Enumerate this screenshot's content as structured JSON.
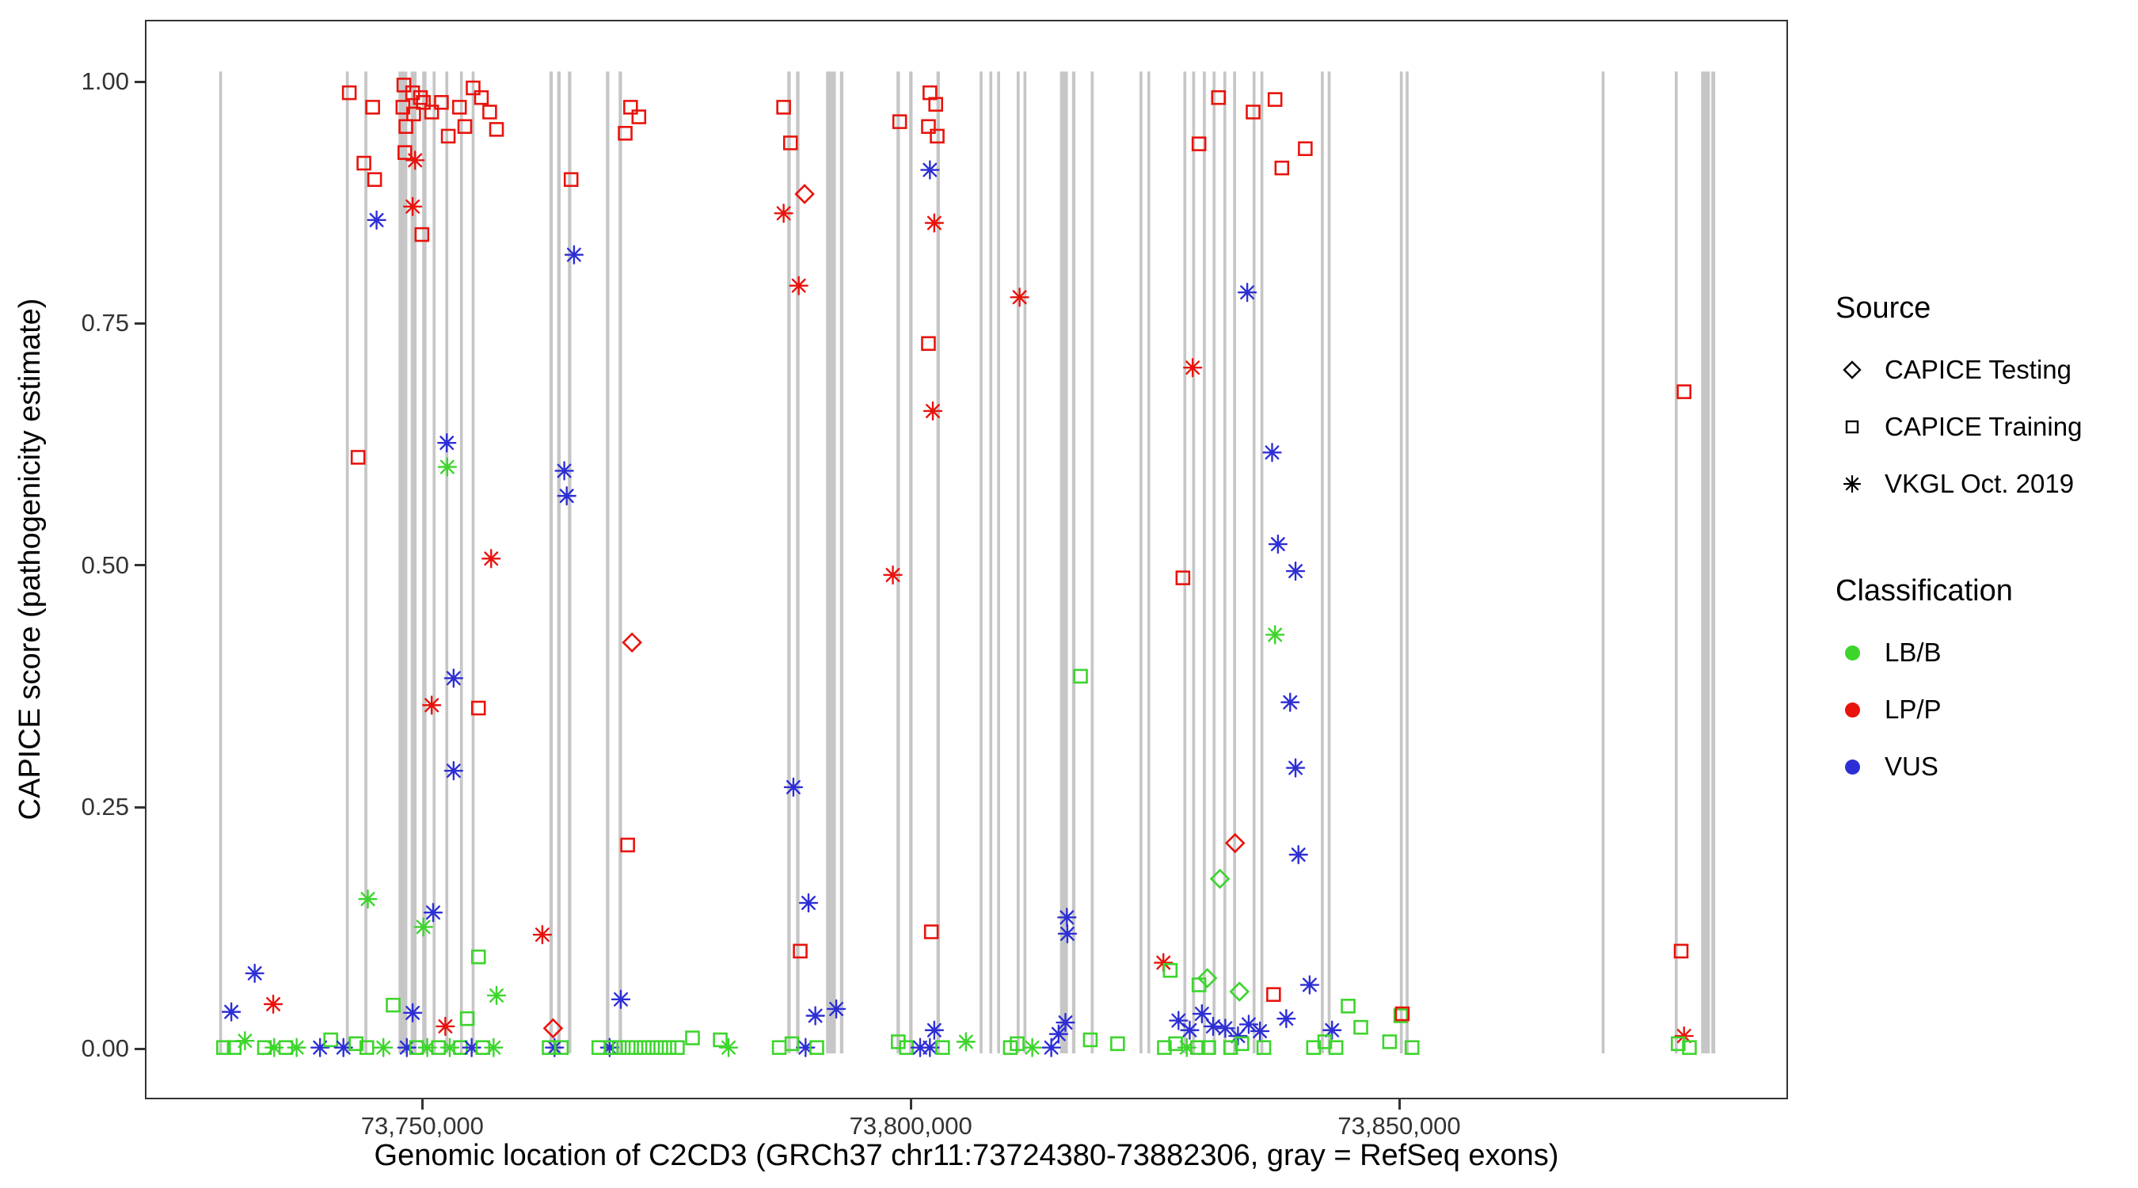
{
  "figure": {
    "xlabel": "Genomic location of C2CD3 (GRCh37 chr11:73724380-73882306, gray = RefSeq exons)",
    "ylabel": "CAPICE score (pathogenicity estimate)",
    "gene": "C2CD3",
    "assembly": "GRCh37",
    "region": "chr11:73724380-73882306"
  },
  "legend": {
    "source": {
      "title": "Source",
      "items": [
        {
          "label": "CAPICE Testing",
          "marker": "diamond"
        },
        {
          "label": "CAPICE Training",
          "marker": "square"
        },
        {
          "label": "VKGL Oct. 2019",
          "marker": "asterisk"
        }
      ]
    },
    "classification": {
      "title": "Classification",
      "items": [
        {
          "label": "LB/B",
          "color": "#3cd52c"
        },
        {
          "label": "LP/P",
          "color": "#e8130c"
        },
        {
          "label": "VUS",
          "color": "#2d2fd5"
        }
      ]
    }
  },
  "chart_data": {
    "type": "scatter",
    "title": "",
    "xlabel": "Genomic location of C2CD3 (GRCh37 chr11:73724380-73882306, gray = RefSeq exons)",
    "ylabel": "CAPICE score (pathogenicity estimate)",
    "legend_position": "right",
    "grid": false,
    "xlim": [
      73721600,
      73889800
    ],
    "ylim": [
      -0.052,
      1.064
    ],
    "x_ticks": [
      {
        "value": 73750000,
        "label": "73,750,000"
      },
      {
        "value": 73800000,
        "label": "73,800,000"
      },
      {
        "value": 73850000,
        "label": "73,850,000"
      }
    ],
    "y_ticks": [
      {
        "value": 0.0,
        "label": "0.00"
      },
      {
        "value": 0.25,
        "label": "0.25"
      },
      {
        "value": 0.5,
        "label": "0.50"
      },
      {
        "value": 0.75,
        "label": "0.75"
      },
      {
        "value": 1.0,
        "label": "1.00"
      }
    ],
    "exon_color": "#c6c6c6",
    "exon_note": "gray vertical bands = RefSeq exons, format [center_position, width_bp]",
    "exons": [
      [
        73729200,
        300
      ],
      [
        73742200,
        300
      ],
      [
        73744100,
        300
      ],
      [
        73747900,
        900
      ],
      [
        73749000,
        600
      ],
      [
        73750100,
        450
      ],
      [
        73751100,
        300
      ],
      [
        73752400,
        300
      ],
      [
        73753900,
        300
      ],
      [
        73755100,
        300
      ],
      [
        73763100,
        350
      ],
      [
        73763900,
        350
      ],
      [
        73765000,
        350
      ],
      [
        73768900,
        350
      ],
      [
        73770200,
        350
      ],
      [
        73787500,
        350
      ],
      [
        73788400,
        350
      ],
      [
        73791800,
        1000
      ],
      [
        73792900,
        350
      ],
      [
        73798700,
        350
      ],
      [
        73800000,
        350
      ],
      [
        73802800,
        350
      ],
      [
        73807200,
        300
      ],
      [
        73808200,
        300
      ],
      [
        73809000,
        300
      ],
      [
        73811000,
        300
      ],
      [
        73811700,
        300
      ],
      [
        73815700,
        800
      ],
      [
        73816700,
        350
      ],
      [
        73818600,
        300
      ],
      [
        73823600,
        300
      ],
      [
        73824400,
        300
      ],
      [
        73828100,
        300
      ],
      [
        73829000,
        300
      ],
      [
        73830100,
        300
      ],
      [
        73831100,
        300
      ],
      [
        73832200,
        300
      ],
      [
        73833200,
        300
      ],
      [
        73835200,
        300
      ],
      [
        73836000,
        300
      ],
      [
        73842200,
        300
      ],
      [
        73842900,
        300
      ],
      [
        73850300,
        300
      ],
      [
        73850900,
        300
      ],
      [
        73871000,
        300
      ],
      [
        73878500,
        300
      ],
      [
        73881500,
        900
      ],
      [
        73882300,
        400
      ]
    ],
    "point_format": [
      "genomic_position",
      "capice_score",
      "source_marker_code",
      "classification_code"
    ],
    "marker_codes": {
      "d": "CAPICE Testing (open diamond)",
      "s": "CAPICE Training (open square)",
      "a": "VKGL Oct. 2019 (asterisk)"
    },
    "class_codes": {
      "g": "LB/B",
      "r": "LP/P",
      "b": "VUS"
    },
    "class_colors": {
      "g": "#3cd52c",
      "r": "#e8130c",
      "b": "#2d2fd5"
    },
    "points": [
      [
        73729500,
        0.0,
        "s",
        "g"
      ],
      [
        73730600,
        0.0,
        "s",
        "g"
      ],
      [
        73730300,
        0.037,
        "a",
        "b"
      ],
      [
        73732700,
        0.077,
        "a",
        "b"
      ],
      [
        73731700,
        0.007,
        "a",
        "g"
      ],
      [
        73733700,
        0.0,
        "s",
        "g"
      ],
      [
        73734600,
        0.045,
        "a",
        "r"
      ],
      [
        73734700,
        0.0,
        "a",
        "g"
      ],
      [
        73735900,
        0.0,
        "s",
        "g"
      ],
      [
        73737000,
        0.0,
        "a",
        "g"
      ],
      [
        73739400,
        0.0,
        "a",
        "b"
      ],
      [
        73740500,
        0.008,
        "s",
        "g"
      ],
      [
        73741800,
        0.0,
        "a",
        "b"
      ],
      [
        73742400,
        0.99,
        "s",
        "r"
      ],
      [
        73744800,
        0.975,
        "s",
        "r"
      ],
      [
        73743900,
        0.917,
        "s",
        "r"
      ],
      [
        73745000,
        0.9,
        "s",
        "r"
      ],
      [
        73745200,
        0.858,
        "a",
        "b"
      ],
      [
        73743300,
        0.612,
        "s",
        "r"
      ],
      [
        73744300,
        0.154,
        "a",
        "g"
      ],
      [
        73746900,
        0.044,
        "s",
        "g"
      ],
      [
        73743100,
        0.004,
        "s",
        "g"
      ],
      [
        73744200,
        0.0,
        "s",
        "g"
      ],
      [
        73745900,
        0.0,
        "a",
        "g"
      ],
      [
        73748000,
        0.998,
        "s",
        "r"
      ],
      [
        73748900,
        0.99,
        "s",
        "r"
      ],
      [
        73749700,
        0.985,
        "s",
        "r"
      ],
      [
        73747900,
        0.975,
        "s",
        "r"
      ],
      [
        73749000,
        0.968,
        "s",
        "r"
      ],
      [
        73750000,
        0.98,
        "s",
        "r"
      ],
      [
        73748200,
        0.955,
        "s",
        "r"
      ],
      [
        73749150,
        0.92,
        "a",
        "r"
      ],
      [
        73748100,
        0.928,
        "s",
        "r"
      ],
      [
        73748900,
        0.872,
        "a",
        "r"
      ],
      [
        73749850,
        0.843,
        "s",
        "r"
      ],
      [
        73750850,
        0.97,
        "s",
        "r"
      ],
      [
        73751850,
        0.98,
        "s",
        "r"
      ],
      [
        73752550,
        0.945,
        "s",
        "r"
      ],
      [
        73753700,
        0.975,
        "s",
        "r"
      ],
      [
        73755100,
        0.995,
        "s",
        "r"
      ],
      [
        73755950,
        0.985,
        "s",
        "r"
      ],
      [
        73754250,
        0.955,
        "s",
        "r"
      ],
      [
        73756800,
        0.97,
        "s",
        "r"
      ],
      [
        73757500,
        0.952,
        "s",
        "r"
      ],
      [
        73752400,
        0.627,
        "a",
        "b"
      ],
      [
        73752450,
        0.602,
        "a",
        "g"
      ],
      [
        73756950,
        0.507,
        "a",
        "r"
      ],
      [
        73750850,
        0.355,
        "a",
        "r"
      ],
      [
        73755650,
        0.352,
        "s",
        "r"
      ],
      [
        73753100,
        0.383,
        "a",
        "b"
      ],
      [
        73753100,
        0.287,
        "a",
        "b"
      ],
      [
        73751000,
        0.14,
        "a",
        "b"
      ],
      [
        73750000,
        0.125,
        "a",
        "g"
      ],
      [
        73748900,
        0.036,
        "a",
        "b"
      ],
      [
        73755650,
        0.094,
        "s",
        "g"
      ],
      [
        73757500,
        0.054,
        "a",
        "g"
      ],
      [
        73754500,
        0.03,
        "s",
        "g"
      ],
      [
        73752250,
        0.022,
        "a",
        "r"
      ],
      [
        73748300,
        0.0,
        "a",
        "b"
      ],
      [
        73749300,
        0.0,
        "s",
        "g"
      ],
      [
        73750400,
        0.0,
        "a",
        "g"
      ],
      [
        73751550,
        0.0,
        "s",
        "g"
      ],
      [
        73752700,
        0.0,
        "a",
        "g"
      ],
      [
        73753800,
        0.0,
        "s",
        "g"
      ],
      [
        73754950,
        0.0,
        "a",
        "b"
      ],
      [
        73756100,
        0.0,
        "s",
        "g"
      ],
      [
        73757200,
        0.0,
        "a",
        "g"
      ],
      [
        73762200,
        0.117,
        "a",
        "r"
      ],
      [
        73763300,
        0.02,
        "d",
        "r"
      ],
      [
        73765150,
        0.9,
        "s",
        "r"
      ],
      [
        73765450,
        0.822,
        "a",
        "b"
      ],
      [
        73764450,
        0.598,
        "a",
        "b"
      ],
      [
        73764700,
        0.572,
        "a",
        "b"
      ],
      [
        73763450,
        0.0,
        "a",
        "b"
      ],
      [
        73764150,
        0.0,
        "s",
        "g"
      ],
      [
        73762900,
        0.0,
        "s",
        "g"
      ],
      [
        73771250,
        0.975,
        "s",
        "r"
      ],
      [
        73772100,
        0.965,
        "s",
        "r"
      ],
      [
        73770700,
        0.948,
        "s",
        "r"
      ],
      [
        73771400,
        0.42,
        "d",
        "r"
      ],
      [
        73770950,
        0.21,
        "s",
        "r"
      ],
      [
        73770250,
        0.05,
        "a",
        "b"
      ],
      [
        73769100,
        0.0,
        "a",
        "b"
      ],
      [
        73768000,
        0.0,
        "s",
        "g"
      ],
      [
        73769250,
        0.0,
        "s",
        "g"
      ],
      [
        73770100,
        0.0,
        "s",
        "g"
      ],
      [
        73771000,
        0.0,
        "s",
        "g"
      ],
      [
        73771800,
        0.0,
        "s",
        "g"
      ],
      [
        73772650,
        0.0,
        "s",
        "g"
      ],
      [
        73773500,
        0.0,
        "s",
        "g"
      ],
      [
        73774350,
        0.0,
        "s",
        "g"
      ],
      [
        73775200,
        0.0,
        "s",
        "g"
      ],
      [
        73776050,
        0.0,
        "s",
        "g"
      ],
      [
        73777600,
        0.01,
        "s",
        "g"
      ],
      [
        73780450,
        0.008,
        "s",
        "g"
      ],
      [
        73781300,
        0.0,
        "a",
        "g"
      ],
      [
        73786950,
        0.975,
        "s",
        "r"
      ],
      [
        73787650,
        0.938,
        "s",
        "r"
      ],
      [
        73786950,
        0.865,
        "a",
        "r"
      ],
      [
        73789100,
        0.885,
        "d",
        "r"
      ],
      [
        73788500,
        0.79,
        "a",
        "r"
      ],
      [
        73787950,
        0.27,
        "a",
        "b"
      ],
      [
        73789500,
        0.15,
        "a",
        "b"
      ],
      [
        73788650,
        0.1,
        "s",
        "r"
      ],
      [
        73790200,
        0.033,
        "a",
        "b"
      ],
      [
        73792350,
        0.04,
        "a",
        "b"
      ],
      [
        73789200,
        0.0,
        "a",
        "b"
      ],
      [
        73787800,
        0.004,
        "s",
        "g"
      ],
      [
        73786500,
        0.0,
        "s",
        "g"
      ],
      [
        73790350,
        0.0,
        "s",
        "g"
      ],
      [
        73798850,
        0.96,
        "s",
        "r"
      ],
      [
        73801950,
        0.99,
        "s",
        "r"
      ],
      [
        73802550,
        0.978,
        "s",
        "r"
      ],
      [
        73801800,
        0.955,
        "s",
        "r"
      ],
      [
        73802700,
        0.945,
        "s",
        "r"
      ],
      [
        73801950,
        0.91,
        "a",
        "b"
      ],
      [
        73802400,
        0.855,
        "a",
        "r"
      ],
      [
        73801800,
        0.73,
        "s",
        "r"
      ],
      [
        73802250,
        0.66,
        "a",
        "r"
      ],
      [
        73798150,
        0.49,
        "a",
        "r"
      ],
      [
        73802100,
        0.12,
        "s",
        "r"
      ],
      [
        73798700,
        0.006,
        "s",
        "g"
      ],
      [
        73799550,
        0.0,
        "s",
        "g"
      ],
      [
        73800950,
        0.0,
        "a",
        "b"
      ],
      [
        73801950,
        0.0,
        "a",
        "b"
      ],
      [
        73803250,
        0.0,
        "s",
        "g"
      ],
      [
        73802400,
        0.018,
        "a",
        "b"
      ],
      [
        73805650,
        0.006,
        "a",
        "g"
      ],
      [
        73811150,
        0.778,
        "a",
        "r"
      ],
      [
        73817400,
        0.385,
        "s",
        "g"
      ],
      [
        73816000,
        0.135,
        "a",
        "b"
      ],
      [
        73816050,
        0.118,
        "a",
        "b"
      ],
      [
        73814400,
        0.0,
        "a",
        "b"
      ],
      [
        73815150,
        0.014,
        "a",
        "b"
      ],
      [
        73815850,
        0.026,
        "a",
        "b"
      ],
      [
        73812450,
        0.0,
        "a",
        "g"
      ],
      [
        73810900,
        0.004,
        "s",
        "g"
      ],
      [
        73818400,
        0.008,
        "s",
        "g"
      ],
      [
        73821200,
        0.004,
        "s",
        "g"
      ],
      [
        73810200,
        0.0,
        "s",
        "g"
      ],
      [
        73825900,
        0.088,
        "a",
        "r"
      ],
      [
        73826600,
        0.08,
        "s",
        "g"
      ],
      [
        73828900,
        0.705,
        "a",
        "r"
      ],
      [
        73827900,
        0.487,
        "s",
        "r"
      ],
      [
        73829550,
        0.937,
        "s",
        "r"
      ],
      [
        73831550,
        0.985,
        "s",
        "r"
      ],
      [
        73835100,
        0.97,
        "s",
        "r"
      ],
      [
        73837350,
        0.983,
        "s",
        "r"
      ],
      [
        73838050,
        0.912,
        "s",
        "r"
      ],
      [
        73840450,
        0.932,
        "s",
        "r"
      ],
      [
        73834500,
        0.783,
        "a",
        "b"
      ],
      [
        73837050,
        0.617,
        "a",
        "b"
      ],
      [
        73837650,
        0.522,
        "a",
        "b"
      ],
      [
        73839450,
        0.494,
        "a",
        "b"
      ],
      [
        73837350,
        0.428,
        "a",
        "g"
      ],
      [
        73838900,
        0.358,
        "a",
        "b"
      ],
      [
        73839450,
        0.29,
        "a",
        "b"
      ],
      [
        73839750,
        0.2,
        "a",
        "b"
      ],
      [
        73833250,
        0.212,
        "d",
        "r"
      ],
      [
        73831700,
        0.175,
        "d",
        "g"
      ],
      [
        73830400,
        0.072,
        "d",
        "g"
      ],
      [
        73829550,
        0.065,
        "s",
        "g"
      ],
      [
        73833700,
        0.058,
        "d",
        "g"
      ],
      [
        73837200,
        0.055,
        "s",
        "r"
      ],
      [
        73827450,
        0.028,
        "a",
        "b"
      ],
      [
        73828600,
        0.018,
        "a",
        "b"
      ],
      [
        73829850,
        0.035,
        "a",
        "b"
      ],
      [
        73831000,
        0.022,
        "a",
        "b"
      ],
      [
        73832250,
        0.02,
        "a",
        "b"
      ],
      [
        73833550,
        0.012,
        "a",
        "b"
      ],
      [
        73834650,
        0.024,
        "a",
        "b"
      ],
      [
        73835800,
        0.017,
        "a",
        "b"
      ],
      [
        73838500,
        0.03,
        "a",
        "b"
      ],
      [
        73840900,
        0.065,
        "a",
        "b"
      ],
      [
        73843200,
        0.018,
        "a",
        "b"
      ],
      [
        73826000,
        0.0,
        "s",
        "g"
      ],
      [
        73827150,
        0.004,
        "s",
        "g"
      ],
      [
        73828300,
        0.0,
        "a",
        "g"
      ],
      [
        73829400,
        0.0,
        "s",
        "g"
      ],
      [
        73830550,
        0.0,
        "s",
        "g"
      ],
      [
        73832800,
        0.0,
        "s",
        "g"
      ],
      [
        73833950,
        0.004,
        "s",
        "g"
      ],
      [
        73836200,
        0.0,
        "s",
        "g"
      ],
      [
        73841300,
        0.0,
        "s",
        "g"
      ],
      [
        73842450,
        0.006,
        "s",
        "g"
      ],
      [
        73843600,
        0.0,
        "s",
        "g"
      ],
      [
        73844850,
        0.043,
        "s",
        "g"
      ],
      [
        73846150,
        0.021,
        "s",
        "g"
      ],
      [
        73849100,
        0.006,
        "s",
        "g"
      ],
      [
        73850250,
        0.033,
        "s",
        "g"
      ],
      [
        73850400,
        0.035,
        "s",
        "r"
      ],
      [
        73851400,
        0.0,
        "s",
        "g"
      ],
      [
        73879300,
        0.68,
        "s",
        "r"
      ],
      [
        73879000,
        0.1,
        "s",
        "r"
      ],
      [
        73879300,
        0.012,
        "a",
        "r"
      ],
      [
        73879850,
        0.0,
        "s",
        "g"
      ],
      [
        73878700,
        0.004,
        "s",
        "g"
      ]
    ]
  }
}
